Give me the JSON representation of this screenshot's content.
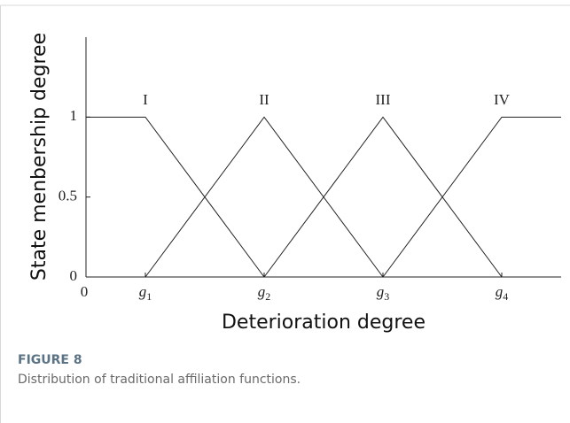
{
  "chart_data": {
    "type": "line",
    "x_label": "Deterioration degree",
    "y_label": "State menbership degree",
    "figure_label": "FIGURE 8",
    "caption": "Distribution of traditional affiliation functions.",
    "color": "#222222",
    "xlim": [
      0,
      8
    ],
    "xticks": [
      0,
      {
        "value": 1,
        "label": "g1"
      },
      {
        "value": 3,
        "label": "g2"
      },
      {
        "value": 5,
        "label": "g3"
      },
      {
        "value": 7,
        "label": "g4"
      }
    ],
    "ylim": [
      0,
      1.5
    ],
    "yticks": [
      0,
      0.5,
      1
    ],
    "series": [
      {
        "name": "I",
        "x": [
          0,
          1,
          3
        ],
        "values": [
          1,
          1,
          0
        ]
      },
      {
        "name": "II",
        "x": [
          1,
          3,
          5
        ],
        "values": [
          0,
          1,
          0
        ]
      },
      {
        "name": "III",
        "x": [
          3,
          5,
          7
        ],
        "values": [
          0,
          1,
          0
        ]
      },
      {
        "name": "IV",
        "x": [
          5,
          7,
          8
        ],
        "values": [
          0,
          1,
          1
        ]
      }
    ]
  }
}
